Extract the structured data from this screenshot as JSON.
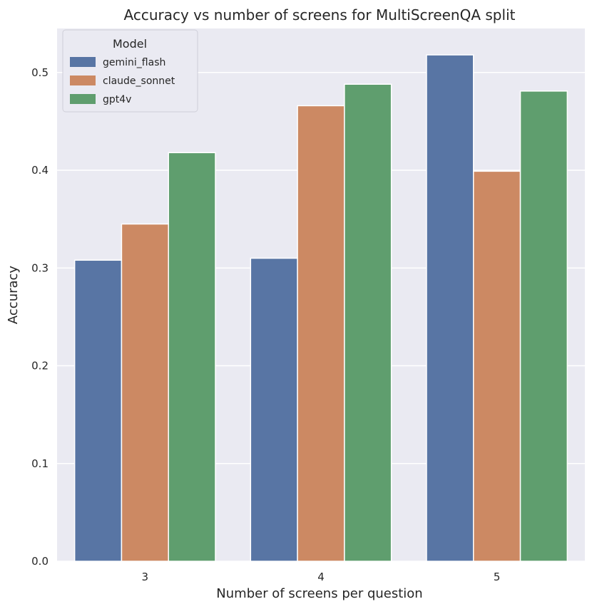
{
  "chart_data": {
    "type": "bar",
    "title": "Accuracy vs number of screens for MultiScreenQA split",
    "xlabel": "Number of screens per question",
    "ylabel": "Accuracy",
    "categories": [
      "3",
      "4",
      "5"
    ],
    "ylim": [
      0,
      0.545
    ],
    "yticks": [
      "0.0",
      "0.1",
      "0.2",
      "0.3",
      "0.4",
      "0.5"
    ],
    "grid": true,
    "legend": {
      "title": "Model",
      "placement": "top-left"
    },
    "series": [
      {
        "name": "gemini_flash",
        "color": "#5875a4",
        "values": [
          0.308,
          0.31,
          0.518
        ]
      },
      {
        "name": "claude_sonnet",
        "color": "#cc8963",
        "values": [
          0.345,
          0.466,
          0.399
        ]
      },
      {
        "name": "gpt4v",
        "color": "#5f9e6e",
        "values": [
          0.418,
          0.488,
          0.481
        ]
      }
    ]
  }
}
